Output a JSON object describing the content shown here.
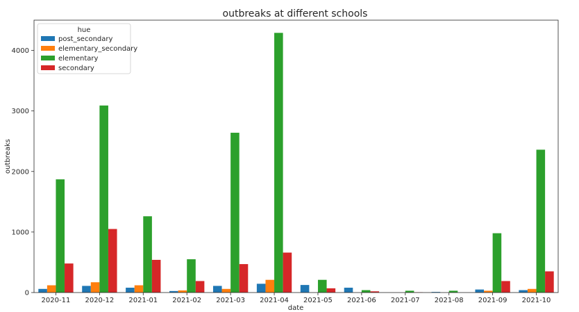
{
  "chart_data": {
    "type": "bar",
    "title": "outbreaks at different schools",
    "xlabel": "date",
    "ylabel": "outbreaks",
    "ylim": [
      0,
      4500
    ],
    "yticks": [
      0,
      1000,
      2000,
      3000,
      4000
    ],
    "grid": false,
    "legend": {
      "title": "hue",
      "placement": "top-left"
    },
    "categories": [
      "2020-11",
      "2020-12",
      "2021-01",
      "2021-02",
      "2021-03",
      "2021-04",
      "2021-05",
      "2021-06",
      "2021-07",
      "2021-08",
      "2021-09",
      "2021-10"
    ],
    "series": [
      {
        "name": "post_secondary",
        "color": "#1f77b4",
        "values": [
          60,
          110,
          80,
          25,
          110,
          145,
          125,
          80,
          0,
          10,
          50,
          40
        ]
      },
      {
        "name": "elementary_secondary",
        "color": "#ff7f0e",
        "values": [
          120,
          170,
          120,
          35,
          60,
          210,
          0,
          0,
          0,
          0,
          30,
          60
        ]
      },
      {
        "name": "elementary",
        "color": "#2ca02c",
        "values": [
          1870,
          3090,
          1260,
          550,
          2640,
          4290,
          210,
          40,
          30,
          30,
          980,
          2360
        ]
      },
      {
        "name": "secondary",
        "color": "#d62728",
        "values": [
          480,
          1050,
          540,
          190,
          470,
          660,
          70,
          20,
          5,
          0,
          190,
          350
        ]
      }
    ]
  }
}
